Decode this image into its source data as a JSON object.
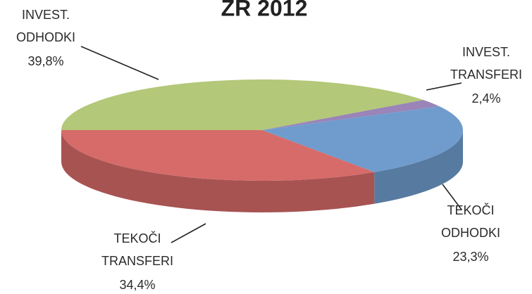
{
  "chart_data": {
    "type": "pie",
    "title": "ZR 2012",
    "categories": [
      "INVEST. ODHODKI",
      "INVEST. TRANSFERI",
      "TEKOČI ODHODKI",
      "TEKOČI TRANSFERI"
    ],
    "values": [
      39.8,
      2.4,
      23.3,
      34.4
    ],
    "value_labels": [
      "39,8%",
      "2,4%",
      "23,3%",
      "34,4%"
    ],
    "colors": [
      "#b3c878",
      "#9a84b8",
      "#6f9ccd",
      "#d66b69"
    ]
  }
}
